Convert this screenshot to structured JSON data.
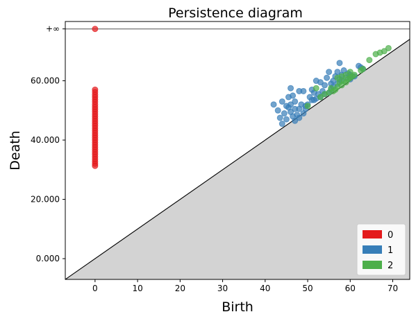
{
  "chart_data": {
    "type": "scatter",
    "title": "Persistence diagram",
    "xlabel": "Birth",
    "ylabel": "Death",
    "xlim": [
      -7,
      74
    ],
    "ylim": [
      -7,
      80
    ],
    "x_ticks": [
      0,
      10,
      20,
      30,
      40,
      50,
      60,
      70
    ],
    "x_tick_labels": [
      "0",
      "10",
      "20",
      "30",
      "40",
      "50",
      "60",
      "70"
    ],
    "y_ticks": [
      0,
      20,
      40,
      60,
      77.5
    ],
    "y_tick_labels": [
      "0.000",
      "20.000",
      "40.000",
      "60.000",
      "+∞"
    ],
    "infinity_line_value": 77.5,
    "diagonal": true,
    "legend_position": "bottom-right",
    "colors": {
      "0": "#e41a1c",
      "1": "#377eb8",
      "2": "#4daf4a",
      "shade": "#d3d3d3",
      "infinity_line": "#808080"
    },
    "series": [
      {
        "name": "0",
        "color": "#e41a1c",
        "points": [
          [
            0,
            77.5
          ],
          [
            0,
            57.0
          ],
          [
            0,
            56.2
          ],
          [
            0,
            55.3
          ],
          [
            0,
            54.5
          ],
          [
            0,
            53.7
          ],
          [
            0,
            52.9
          ],
          [
            0,
            52.0
          ],
          [
            0,
            51.2
          ],
          [
            0,
            50.4
          ],
          [
            0,
            49.6
          ],
          [
            0,
            48.8
          ],
          [
            0,
            48.0
          ],
          [
            0,
            47.2
          ],
          [
            0,
            46.4
          ],
          [
            0,
            45.6
          ],
          [
            0,
            44.8
          ],
          [
            0,
            44.0
          ],
          [
            0,
            43.2
          ],
          [
            0,
            42.4
          ],
          [
            0,
            41.6
          ],
          [
            0,
            40.8
          ],
          [
            0,
            40.0
          ],
          [
            0,
            39.2
          ],
          [
            0,
            38.4
          ],
          [
            0,
            37.6
          ],
          [
            0,
            36.8
          ],
          [
            0,
            36.0
          ],
          [
            0,
            35.2
          ],
          [
            0,
            34.4
          ],
          [
            0,
            33.6
          ],
          [
            0,
            32.8
          ],
          [
            0,
            32.0
          ],
          [
            0,
            31.3
          ]
        ]
      },
      {
        "name": "1",
        "color": "#377eb8",
        "points": [
          [
            42,
            52
          ],
          [
            43,
            50
          ],
          [
            43.5,
            47.5
          ],
          [
            44,
            45.5
          ],
          [
            44,
            53
          ],
          [
            44.5,
            49
          ],
          [
            45,
            47
          ],
          [
            45,
            51.5
          ],
          [
            45.5,
            54.5
          ],
          [
            46,
            49.5
          ],
          [
            46,
            52
          ],
          [
            46,
            57.5
          ],
          [
            46.5,
            48
          ],
          [
            47,
            46.5
          ],
          [
            47,
            50.5
          ],
          [
            47,
            53
          ],
          [
            47.5,
            48.5
          ],
          [
            48,
            47.5
          ],
          [
            48,
            50.5
          ],
          [
            48,
            56.5
          ],
          [
            48.5,
            52
          ],
          [
            49,
            49
          ],
          [
            49,
            56.5
          ],
          [
            49.5,
            51.5
          ],
          [
            50,
            52
          ],
          [
            50.5,
            54.5
          ],
          [
            51,
            53.5
          ],
          [
            51,
            57
          ],
          [
            51.5,
            56
          ],
          [
            52,
            54
          ],
          [
            52,
            60
          ],
          [
            52.5,
            55.5
          ],
          [
            53,
            59.5
          ],
          [
            53,
            54.5
          ],
          [
            54,
            55.5
          ],
          [
            54,
            58.5
          ],
          [
            54.5,
            61
          ],
          [
            55,
            56
          ],
          [
            55,
            63
          ],
          [
            55.5,
            57
          ],
          [
            56,
            58
          ],
          [
            56,
            60
          ],
          [
            56.5,
            61.5
          ],
          [
            57,
            59
          ],
          [
            57,
            63
          ],
          [
            57.5,
            66
          ],
          [
            58,
            60
          ],
          [
            58,
            62
          ],
          [
            58.5,
            63.5
          ],
          [
            59,
            61
          ],
          [
            59.5,
            62.5
          ],
          [
            60,
            60.5
          ],
          [
            60,
            62
          ],
          [
            61,
            61.5
          ],
          [
            62,
            65
          ],
          [
            62.5,
            64.5
          ],
          [
            63,
            64
          ],
          [
            45.5,
            51
          ],
          [
            46.5,
            55
          ],
          [
            49.5,
            50.5
          ],
          [
            51.5,
            53.5
          ],
          [
            53.5,
            56.5
          ],
          [
            55.5,
            59
          ],
          [
            57.5,
            60.5
          ]
        ]
      },
      {
        "name": "2",
        "color": "#4daf4a",
        "points": [
          [
            50,
            51.5
          ],
          [
            52,
            57.5
          ],
          [
            53,
            54.5
          ],
          [
            54,
            55.5
          ],
          [
            55,
            56
          ],
          [
            55.5,
            57.5
          ],
          [
            56,
            56.5
          ],
          [
            56.5,
            57
          ],
          [
            57,
            58
          ],
          [
            57,
            61
          ],
          [
            57.5,
            59.5
          ],
          [
            58,
            58.5
          ],
          [
            58,
            61.5
          ],
          [
            58.5,
            60
          ],
          [
            59,
            59.5
          ],
          [
            59,
            62
          ],
          [
            59.5,
            60.5
          ],
          [
            60,
            61
          ],
          [
            60,
            63
          ],
          [
            60.5,
            61.5
          ],
          [
            61,
            62
          ],
          [
            62.5,
            63.5
          ],
          [
            63,
            64
          ],
          [
            64.5,
            67
          ],
          [
            66,
            69
          ],
          [
            67,
            69.5
          ],
          [
            68,
            70
          ],
          [
            69,
            71
          ]
        ]
      }
    ]
  }
}
